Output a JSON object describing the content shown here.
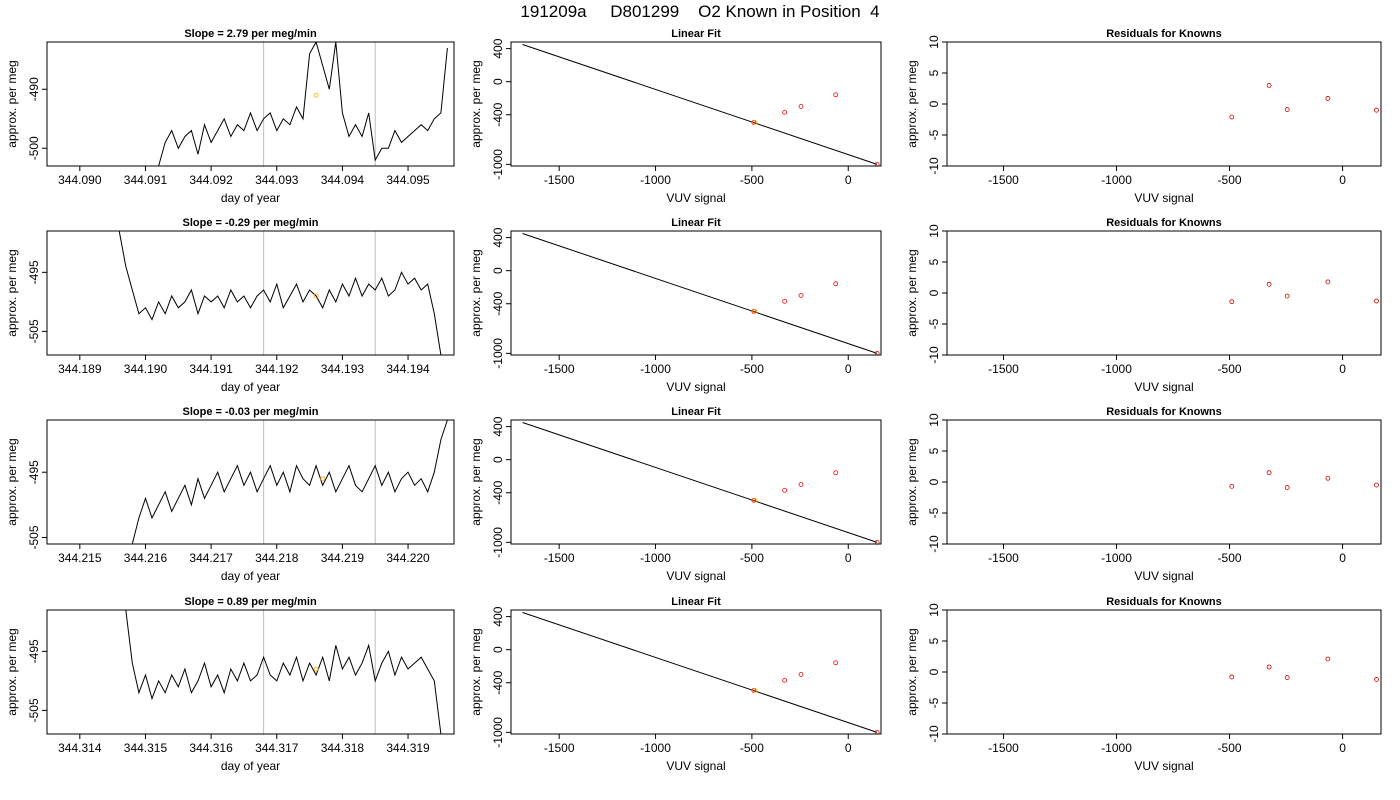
{
  "title": "191209a     D801299    O2 Known in Position  4",
  "colors": {
    "line": "#000000",
    "frame": "#000000",
    "window_line": "#bebebe",
    "sample_point": "#ffa500",
    "known_point": "#ff0000",
    "residual_point": "#cd0000"
  },
  "chart_data": [
    {
      "type": "line",
      "title": "Slope =  2.79  per meg/min",
      "xlabel": "day of year",
      "ylabel": "approx. per meg",
      "xlim": [
        344.0895,
        344.0957
      ],
      "ylim": [
        -503,
        -482
      ],
      "xticks": [
        "344.090",
        "344.091",
        "344.092",
        "344.093",
        "344.094",
        "344.095"
      ],
      "yticks": [
        "-490",
        "-500"
      ],
      "series": [
        {
          "x": [
            344.0912,
            344.0913,
            344.0914,
            344.0915,
            344.0916,
            344.0917,
            344.0918,
            344.0919,
            344.092,
            344.0921,
            344.0922,
            344.0923,
            344.0924,
            344.0925,
            344.0926,
            344.0927,
            344.0928,
            344.0929,
            344.093,
            344.0931,
            344.0932,
            344.0933,
            344.0934,
            344.0935,
            344.0936,
            344.0937,
            344.0938,
            344.0939,
            344.094,
            344.0941,
            344.0942,
            344.0943,
            344.0944,
            344.0945,
            344.0946,
            344.0947,
            344.0948,
            344.0949,
            344.095,
            344.0951,
            344.0952,
            344.0953,
            344.0954,
            344.0955,
            344.0956
          ],
          "y": [
            -503,
            -499,
            -497,
            -500,
            -498,
            -497,
            -501,
            -496,
            -499,
            -497,
            -495,
            -498,
            -496,
            -497,
            -494,
            -497,
            -495,
            -494,
            -497,
            -495,
            -496,
            -493,
            -495,
            -484,
            -482,
            -486,
            -490,
            -482,
            -494,
            -498,
            -496,
            -498,
            -494,
            -502,
            -500,
            -500,
            -497,
            -499,
            -498,
            -497,
            -496,
            -497,
            -495,
            -494,
            -483
          ]
        }
      ],
      "window_lines": [
        344.0928,
        344.0945
      ],
      "sample_point": {
        "x": 344.0936,
        "y": -491
      }
    },
    {
      "type": "scatter",
      "title": "Linear Fit",
      "xlabel": "VUV signal",
      "ylabel": "approx. per meg",
      "xlim": [
        -1750,
        170
      ],
      "ylim": [
        -1020,
        480
      ],
      "xticks": [
        -1500,
        -1000,
        -500,
        0
      ],
      "yticks": [
        400,
        0,
        -400,
        -1000
      ],
      "fit_line": {
        "x": [
          -1690,
          150
        ],
        "y": [
          450,
          -1000
        ]
      },
      "points": [
        {
          "x": -490,
          "y": -493
        },
        {
          "x": -330,
          "y": -370
        },
        {
          "x": -245,
          "y": -300
        },
        {
          "x": -65,
          "y": -158
        },
        {
          "x": 150,
          "y": -1000
        }
      ],
      "sample_point": {
        "x": -485,
        "y": -492
      }
    },
    {
      "type": "scatter",
      "title": "Residuals for Knowns",
      "xlabel": "VUV signal",
      "ylabel": "approx. per meg",
      "xlim": [
        -1750,
        170
      ],
      "ylim": [
        -10,
        10
      ],
      "xticks": [
        -1500,
        -1000,
        -500,
        0
      ],
      "yticks": [
        10,
        5,
        0,
        -5,
        -10
      ],
      "points": [
        {
          "x": -490,
          "y": -2.1
        },
        {
          "x": -325,
          "y": 3.0
        },
        {
          "x": -245,
          "y": -0.9
        },
        {
          "x": -65,
          "y": 0.9
        },
        {
          "x": 150,
          "y": -1.0
        }
      ]
    },
    {
      "type": "line",
      "title": "Slope =  -0.29  per meg/min",
      "xlabel": "day of year",
      "ylabel": "approx. per meg",
      "xlim": [
        344.1885,
        344.1947
      ],
      "ylim": [
        -509,
        -488
      ],
      "xticks": [
        "344.189",
        "344.190",
        "344.191",
        "344.192",
        "344.193",
        "344.194"
      ],
      "yticks": [
        "-495",
        "-505"
      ],
      "series": [
        {
          "x": [
            344.1896,
            344.1897,
            344.1898,
            344.1899,
            344.19,
            344.1901,
            344.1902,
            344.1903,
            344.1904,
            344.1905,
            344.1906,
            344.1907,
            344.1908,
            344.1909,
            344.191,
            344.1911,
            344.1912,
            344.1913,
            344.1914,
            344.1915,
            344.1916,
            344.1917,
            344.1918,
            344.1919,
            344.192,
            344.1921,
            344.1922,
            344.1923,
            344.1924,
            344.1925,
            344.1926,
            344.1927,
            344.1928,
            344.1929,
            344.193,
            344.1931,
            344.1932,
            344.1933,
            344.1934,
            344.1935,
            344.1936,
            344.1937,
            344.1938,
            344.1939,
            344.194,
            344.1941,
            344.1942,
            344.1943,
            344.1944,
            344.1945
          ],
          "y": [
            -488,
            -494,
            -498,
            -502,
            -501,
            -503,
            -500,
            -502,
            -499,
            -501,
            -500,
            -498,
            -502,
            -499,
            -500,
            -499,
            -501,
            -498,
            -500,
            -499,
            -501,
            -499,
            -498,
            -500,
            -497,
            -501,
            -499,
            -497,
            -500,
            -498,
            -499,
            -501,
            -498,
            -500,
            -497,
            -499,
            -496,
            -499,
            -497,
            -498,
            -496,
            -499,
            -498,
            -495,
            -497,
            -496,
            -498,
            -497,
            -502,
            -509
          ]
        }
      ],
      "window_lines": [
        344.1918,
        344.1935
      ],
      "sample_point": {
        "x": 344.1926,
        "y": -499
      }
    },
    {
      "type": "scatter",
      "title": "Linear Fit",
      "xlabel": "VUV signal",
      "ylabel": "approx. per meg",
      "xlim": [
        -1750,
        170
      ],
      "ylim": [
        -1020,
        480
      ],
      "xticks": [
        -1500,
        -1000,
        -500,
        0
      ],
      "yticks": [
        400,
        0,
        -400,
        -1000
      ],
      "fit_line": {
        "x": [
          -1690,
          150
        ],
        "y": [
          450,
          -1000
        ]
      },
      "points": [
        {
          "x": -490,
          "y": -493
        },
        {
          "x": -330,
          "y": -370
        },
        {
          "x": -245,
          "y": -300
        },
        {
          "x": -65,
          "y": -158
        },
        {
          "x": 150,
          "y": -1000
        }
      ],
      "sample_point": {
        "x": -485,
        "y": -492
      }
    },
    {
      "type": "scatter",
      "title": "Residuals for Knowns",
      "xlabel": "VUV signal",
      "ylabel": "approx. per meg",
      "xlim": [
        -1750,
        170
      ],
      "ylim": [
        -10,
        10
      ],
      "xticks": [
        -1500,
        -1000,
        -500,
        0
      ],
      "yticks": [
        10,
        5,
        0,
        -5,
        -10
      ],
      "points": [
        {
          "x": -490,
          "y": -1.4
        },
        {
          "x": -325,
          "y": 1.4
        },
        {
          "x": -245,
          "y": -0.5
        },
        {
          "x": -65,
          "y": 1.8
        },
        {
          "x": 150,
          "y": -1.3
        }
      ]
    },
    {
      "type": "line",
      "title": "Slope =  -0.03  per meg/min",
      "xlabel": "day of year",
      "ylabel": "approx. per meg",
      "xlim": [
        344.2145,
        344.2207
      ],
      "ylim": [
        -506,
        -487
      ],
      "xticks": [
        "344.215",
        "344.216",
        "344.217",
        "344.218",
        "344.219",
        "344.220"
      ],
      "yticks": [
        "-495",
        "-505"
      ],
      "series": [
        {
          "x": [
            344.2158,
            344.2159,
            344.216,
            344.2161,
            344.2162,
            344.2163,
            344.2164,
            344.2165,
            344.2166,
            344.2167,
            344.2168,
            344.2169,
            344.217,
            344.2171,
            344.2172,
            344.2173,
            344.2174,
            344.2175,
            344.2176,
            344.2177,
            344.2178,
            344.2179,
            344.218,
            344.2181,
            344.2182,
            344.2183,
            344.2184,
            344.2185,
            344.2186,
            344.2187,
            344.2188,
            344.2189,
            344.219,
            344.2191,
            344.2192,
            344.2193,
            344.2194,
            344.2195,
            344.2196,
            344.2197,
            344.2198,
            344.2199,
            344.22,
            344.2201,
            344.2202,
            344.2203,
            344.2204,
            344.2205,
            344.2206
          ],
          "y": [
            -506,
            -502,
            -499,
            -502,
            -500,
            -498,
            -501,
            -499,
            -497,
            -500,
            -496,
            -499,
            -497,
            -495,
            -498,
            -496,
            -494,
            -497,
            -495,
            -498,
            -496,
            -494,
            -497,
            -495,
            -498,
            -494,
            -496,
            -497,
            -494,
            -497,
            -495,
            -498,
            -496,
            -494,
            -497,
            -498,
            -496,
            -494,
            -497,
            -495,
            -498,
            -496,
            -495,
            -497,
            -496,
            -498,
            -495,
            -490,
            -487
          ]
        }
      ],
      "window_lines": [
        344.2178,
        344.2195
      ],
      "sample_point": {
        "x": 344.2187,
        "y": -496
      }
    },
    {
      "type": "scatter",
      "title": "Linear Fit",
      "xlabel": "VUV signal",
      "ylabel": "approx. per meg",
      "xlim": [
        -1750,
        170
      ],
      "ylim": [
        -1020,
        480
      ],
      "xticks": [
        -1500,
        -1000,
        -500,
        0
      ],
      "yticks": [
        400,
        0,
        -400,
        -1000
      ],
      "fit_line": {
        "x": [
          -1690,
          150
        ],
        "y": [
          450,
          -1000
        ]
      },
      "points": [
        {
          "x": -490,
          "y": -493
        },
        {
          "x": -330,
          "y": -370
        },
        {
          "x": -245,
          "y": -300
        },
        {
          "x": -65,
          "y": -158
        },
        {
          "x": 150,
          "y": -1000
        }
      ],
      "sample_point": {
        "x": -485,
        "y": -492
      }
    },
    {
      "type": "scatter",
      "title": "Residuals for Knowns",
      "xlabel": "VUV signal",
      "ylabel": "approx. per meg",
      "xlim": [
        -1750,
        170
      ],
      "ylim": [
        -10,
        10
      ],
      "xticks": [
        -1500,
        -1000,
        -500,
        0
      ],
      "yticks": [
        10,
        5,
        0,
        -5,
        -10
      ],
      "points": [
        {
          "x": -490,
          "y": -0.7
        },
        {
          "x": -325,
          "y": 1.5
        },
        {
          "x": -245,
          "y": -0.9
        },
        {
          "x": -65,
          "y": 0.6
        },
        {
          "x": 150,
          "y": -0.5
        }
      ]
    },
    {
      "type": "line",
      "title": "Slope =  0.89  per meg/min",
      "xlabel": "day of year",
      "ylabel": "approx. per meg",
      "xlim": [
        344.3135,
        344.3197
      ],
      "ylim": [
        -509,
        -488
      ],
      "xticks": [
        "344.314",
        "344.315",
        "344.316",
        "344.317",
        "344.318",
        "344.319"
      ],
      "yticks": [
        "-495",
        "-505"
      ],
      "series": [
        {
          "x": [
            344.3147,
            344.3148,
            344.3149,
            344.315,
            344.3151,
            344.3152,
            344.3153,
            344.3154,
            344.3155,
            344.3156,
            344.3157,
            344.3158,
            344.3159,
            344.316,
            344.3161,
            344.3162,
            344.3163,
            344.3164,
            344.3165,
            344.3166,
            344.3167,
            344.3168,
            344.3169,
            344.317,
            344.3171,
            344.3172,
            344.3173,
            344.3174,
            344.3175,
            344.3176,
            344.3177,
            344.3178,
            344.3179,
            344.318,
            344.3181,
            344.3182,
            344.3183,
            344.3184,
            344.3185,
            344.3186,
            344.3187,
            344.3188,
            344.3189,
            344.319,
            344.3191,
            344.3192,
            344.3193,
            344.3194,
            344.3195
          ],
          "y": [
            -488,
            -497,
            -502,
            -499,
            -503,
            -500,
            -502,
            -499,
            -501,
            -498,
            -502,
            -500,
            -497,
            -501,
            -499,
            -502,
            -498,
            -500,
            -497,
            -500,
            -499,
            -496,
            -499,
            -500,
            -497,
            -499,
            -496,
            -500,
            -497,
            -499,
            -496,
            -500,
            -494,
            -498,
            -496,
            -499,
            -497,
            -494,
            -500,
            -497,
            -495,
            -499,
            -496,
            -498,
            -497,
            -496,
            -498,
            -500,
            -509
          ]
        }
      ],
      "window_lines": [
        344.3168,
        344.3185
      ],
      "sample_point": {
        "x": 344.3176,
        "y": -498
      }
    },
    {
      "type": "scatter",
      "title": "Linear Fit",
      "xlabel": "VUV signal",
      "ylabel": "approx. per meg",
      "xlim": [
        -1750,
        170
      ],
      "ylim": [
        -1020,
        480
      ],
      "xticks": [
        -1500,
        -1000,
        -500,
        0
      ],
      "yticks": [
        400,
        0,
        -400,
        -1000
      ],
      "fit_line": {
        "x": [
          -1690,
          150
        ],
        "y": [
          450,
          -1000
        ]
      },
      "points": [
        {
          "x": -490,
          "y": -493
        },
        {
          "x": -330,
          "y": -370
        },
        {
          "x": -245,
          "y": -300
        },
        {
          "x": -65,
          "y": -158
        },
        {
          "x": 150,
          "y": -1000
        }
      ],
      "sample_point": {
        "x": -485,
        "y": -492
      }
    },
    {
      "type": "scatter",
      "title": "Residuals for Knowns",
      "xlabel": "VUV signal",
      "ylabel": "approx. per meg",
      "xlim": [
        -1750,
        170
      ],
      "ylim": [
        -10,
        10
      ],
      "xticks": [
        -1500,
        -1000,
        -500,
        0
      ],
      "yticks": [
        10,
        5,
        0,
        -5,
        -10
      ],
      "points": [
        {
          "x": -490,
          "y": -0.8
        },
        {
          "x": -325,
          "y": 0.8
        },
        {
          "x": -245,
          "y": -0.9
        },
        {
          "x": -65,
          "y": 2.1
        },
        {
          "x": 150,
          "y": -1.2
        }
      ]
    }
  ]
}
